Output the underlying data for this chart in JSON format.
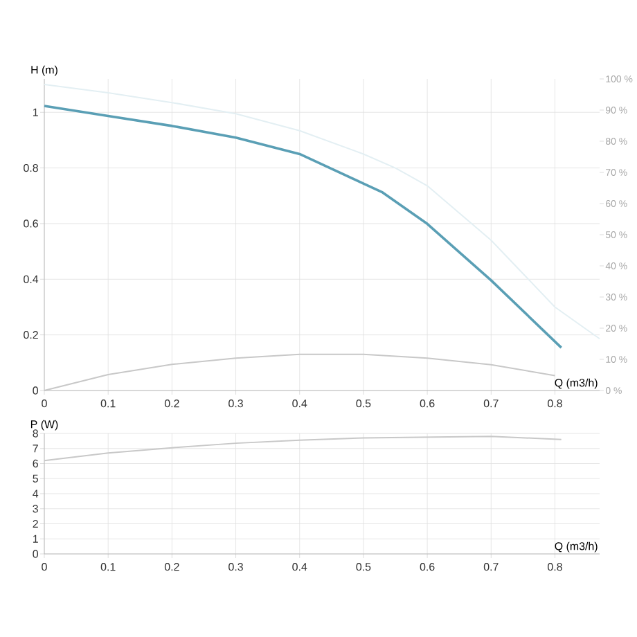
{
  "chart_data": [
    {
      "type": "line",
      "xlabel": "Q (m3/h)",
      "ylabel": "H (m)",
      "xlim": [
        0,
        0.87
      ],
      "xticks": [
        0,
        0.1,
        0.2,
        0.3,
        0.4,
        0.5,
        0.6,
        0.7,
        0.8
      ],
      "ylim": [
        0,
        1.12
      ],
      "yticks": [
        0,
        0.2,
        0.4,
        0.6,
        0.8,
        1
      ],
      "y2lim": [
        0,
        100
      ],
      "y2ticks": [
        {
          "value": 0,
          "label": "0 %"
        },
        {
          "value": 10,
          "label": "10 %"
        },
        {
          "value": 20,
          "label": "20 %"
        },
        {
          "value": 30,
          "label": "30 %"
        },
        {
          "value": 40,
          "label": "40 %"
        },
        {
          "value": 50,
          "label": "50 %"
        },
        {
          "value": 60,
          "label": "60 %"
        },
        {
          "value": 70,
          "label": "70 %"
        },
        {
          "value": 80,
          "label": "80 %"
        },
        {
          "value": 90,
          "label": "90 %"
        },
        {
          "value": 100,
          "label": "100 %"
        }
      ],
      "grid": true,
      "marker": "none",
      "line_style": "solid",
      "series": [
        {
          "color": "#e3eff3",
          "x": [
            0,
            0.1,
            0.2,
            0.3,
            0.4,
            0.5,
            0.55,
            0.6,
            0.7,
            0.8,
            0.87
          ],
          "values": [
            1.1,
            1.07,
            1.035,
            0.995,
            0.934,
            0.85,
            0.8,
            0.736,
            0.54,
            0.3,
            0.186
          ]
        },
        {
          "color": "#c8c8c8",
          "axis": "y2",
          "x": [
            0,
            0.1,
            0.2,
            0.3,
            0.4,
            0.5,
            0.6,
            0.7,
            0.8
          ],
          "values": [
            0,
            5.1,
            8.4,
            10.4,
            11.6,
            11.6,
            10.4,
            8.3,
            4.8
          ]
        },
        {
          "color": "#5a9fb5",
          "x": [
            0,
            0.1,
            0.2,
            0.3,
            0.4,
            0.5,
            0.53,
            0.6,
            0.7,
            0.81
          ],
          "values": [
            1.023,
            0.987,
            0.951,
            0.909,
            0.85,
            0.744,
            0.712,
            0.599,
            0.396,
            0.154
          ]
        }
      ]
    },
    {
      "type": "line",
      "xlabel": "Q (m3/h)",
      "ylabel": "P (W)",
      "xlim": [
        0,
        0.87
      ],
      "xticks": [
        0,
        0.1,
        0.2,
        0.3,
        0.4,
        0.5,
        0.6,
        0.7,
        0.8
      ],
      "ylim": [
        0,
        8
      ],
      "yticks": [
        0,
        1,
        2,
        3,
        4,
        5,
        6,
        7,
        8
      ],
      "grid": true,
      "marker": "none",
      "line_style": "solid",
      "series": [
        {
          "color": "#c8c8c8",
          "x": [
            0,
            0.1,
            0.2,
            0.3,
            0.4,
            0.5,
            0.6,
            0.7,
            0.81
          ],
          "values": [
            6.2,
            6.7,
            7.05,
            7.35,
            7.55,
            7.7,
            7.75,
            7.8,
            7.6
          ]
        }
      ]
    }
  ]
}
